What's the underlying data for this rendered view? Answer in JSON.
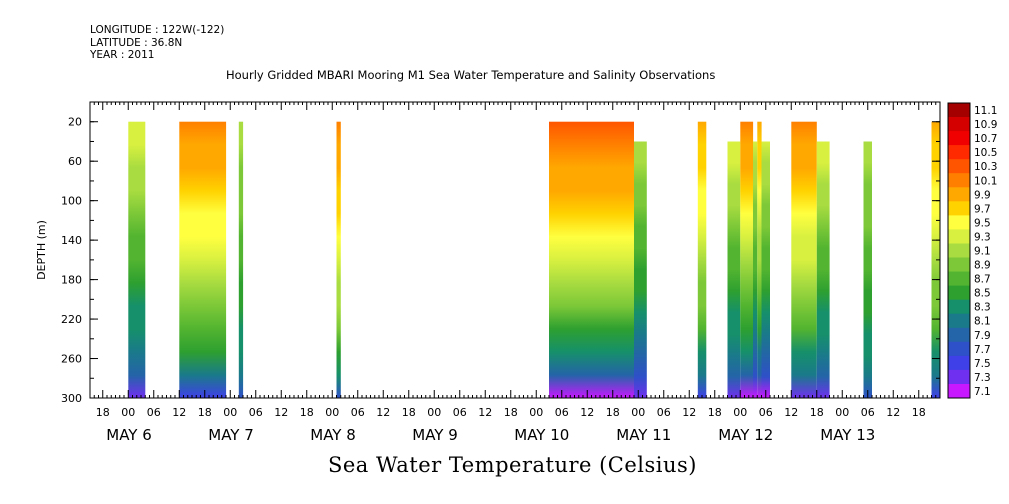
{
  "header": {
    "longitude": "LONGITUDE : 122W(-122)",
    "latitude": "LATITUDE : 36.8N",
    "year": "YEAR : 2011"
  },
  "chart_data": {
    "type": "heatmap",
    "title": "Hourly Gridded MBARI Mooring M1 Sea Water Temperature and Salinity Observations",
    "ylabel": "DEPTH (m)",
    "xlabel": "",
    "colorbar_label": "Sea Water Temperature (Celsius)",
    "x_start": "MAY 5 15:00",
    "x_end": "MAY 13 23:00",
    "ylim": [
      300,
      0
    ],
    "y_ticks": [
      20,
      60,
      100,
      140,
      180,
      220,
      260,
      300
    ],
    "x_hour_tick_labels": [
      "18",
      "00",
      "06",
      "12",
      "18",
      "00",
      "06",
      "12",
      "18",
      "00",
      "06",
      "12",
      "18",
      "00",
      "06",
      "12",
      "18",
      "00",
      "06",
      "12",
      "18",
      "00",
      "06",
      "12",
      "18",
      "00",
      "06",
      "12",
      "18",
      "00",
      "06",
      "12",
      "18",
      "00",
      "06",
      "12"
    ],
    "x_day_labels": [
      "MAY 6",
      "MAY 7",
      "MAY 8",
      "MAY 9",
      "MAY 10",
      "MAY 11",
      "MAY 12",
      "MAY 13"
    ],
    "colorbar_levels": [
      "11.1",
      "10.9",
      "10.7",
      "10.5",
      "10.3",
      "10.1",
      "9.9",
      "9.7",
      "9.5",
      "9.3",
      "9.1",
      "8.9",
      "8.7",
      "8.5",
      "8.3",
      "8.1",
      "7.9",
      "7.7",
      "7.5",
      "7.3",
      "7.1"
    ],
    "colorbar_colors": [
      "#a40000",
      "#d40000",
      "#f00000",
      "#ff2a00",
      "#ff5500",
      "#ff8000",
      "#ffa800",
      "#ffd200",
      "#ffff40",
      "#d8f040",
      "#a8dc40",
      "#7cc838",
      "#52b430",
      "#2ea030",
      "#16906a",
      "#1a7a8a",
      "#2464a8",
      "#2e50c8",
      "#4040e8",
      "#7030f0",
      "#c818ff"
    ],
    "data_segments": [
      {
        "start": "MAY 6 00:00",
        "end": "MAY 6 04:00",
        "top_depth": 20,
        "surface_temp": 9.3,
        "bottom_temp": 7.3
      },
      {
        "start": "MAY 6 12:00",
        "end": "MAY 6 23:00",
        "top_depth": 20,
        "surface_temp": 10.1,
        "bottom_temp": 7.5
      },
      {
        "start": "MAY 7 02:00",
        "end": "MAY 7 03:00",
        "top_depth": 20,
        "surface_temp": 9.1,
        "bottom_temp": 7.7
      },
      {
        "start": "MAY 8 01:00",
        "end": "MAY 8 02:00",
        "top_depth": 20,
        "surface_temp": 10.1,
        "bottom_temp": 7.7
      },
      {
        "start": "MAY 10 03:00",
        "end": "MAY 10 23:00",
        "top_depth": 20,
        "surface_temp": 10.3,
        "bottom_temp": 7.1
      },
      {
        "start": "MAY 10 23:00",
        "end": "MAY 11 02:00",
        "top_depth": 40,
        "surface_temp": 9.1,
        "bottom_temp": 7.3
      },
      {
        "start": "MAY 11 14:00",
        "end": "MAY 11 16:00",
        "top_depth": 20,
        "surface_temp": 9.9,
        "bottom_temp": 7.5
      },
      {
        "start": "MAY 11 21:00",
        "end": "MAY 12 00:00",
        "top_depth": 40,
        "surface_temp": 9.3,
        "bottom_temp": 7.3
      },
      {
        "start": "MAY 12 00:00",
        "end": "MAY 12 03:00",
        "top_depth": 20,
        "surface_temp": 10.1,
        "bottom_temp": 7.1
      },
      {
        "start": "MAY 12 03:00",
        "end": "MAY 12 04:00",
        "top_depth": 40,
        "surface_temp": 9.3,
        "bottom_temp": 7.1
      },
      {
        "start": "MAY 12 04:00",
        "end": "MAY 12 05:00",
        "top_depth": 20,
        "surface_temp": 9.9,
        "bottom_temp": 7.1
      },
      {
        "start": "MAY 12 05:00",
        "end": "MAY 12 07:00",
        "top_depth": 40,
        "surface_temp": 9.3,
        "bottom_temp": 7.1
      },
      {
        "start": "MAY 12 12:00",
        "end": "MAY 12 18:00",
        "top_depth": 20,
        "surface_temp": 10.1,
        "bottom_temp": 7.3
      },
      {
        "start": "MAY 12 18:00",
        "end": "MAY 12 21:00",
        "top_depth": 40,
        "surface_temp": 9.3,
        "bottom_temp": 7.3
      },
      {
        "start": "MAY 13 05:00",
        "end": "MAY 13 07:00",
        "top_depth": 40,
        "surface_temp": 9.1,
        "bottom_temp": 7.7
      },
      {
        "start": "MAY 13 21:00",
        "end": "MAY 13 23:00",
        "top_depth": 20,
        "surface_temp": 9.9,
        "bottom_temp": 7.5
      }
    ],
    "grid": false,
    "legend": "right"
  }
}
